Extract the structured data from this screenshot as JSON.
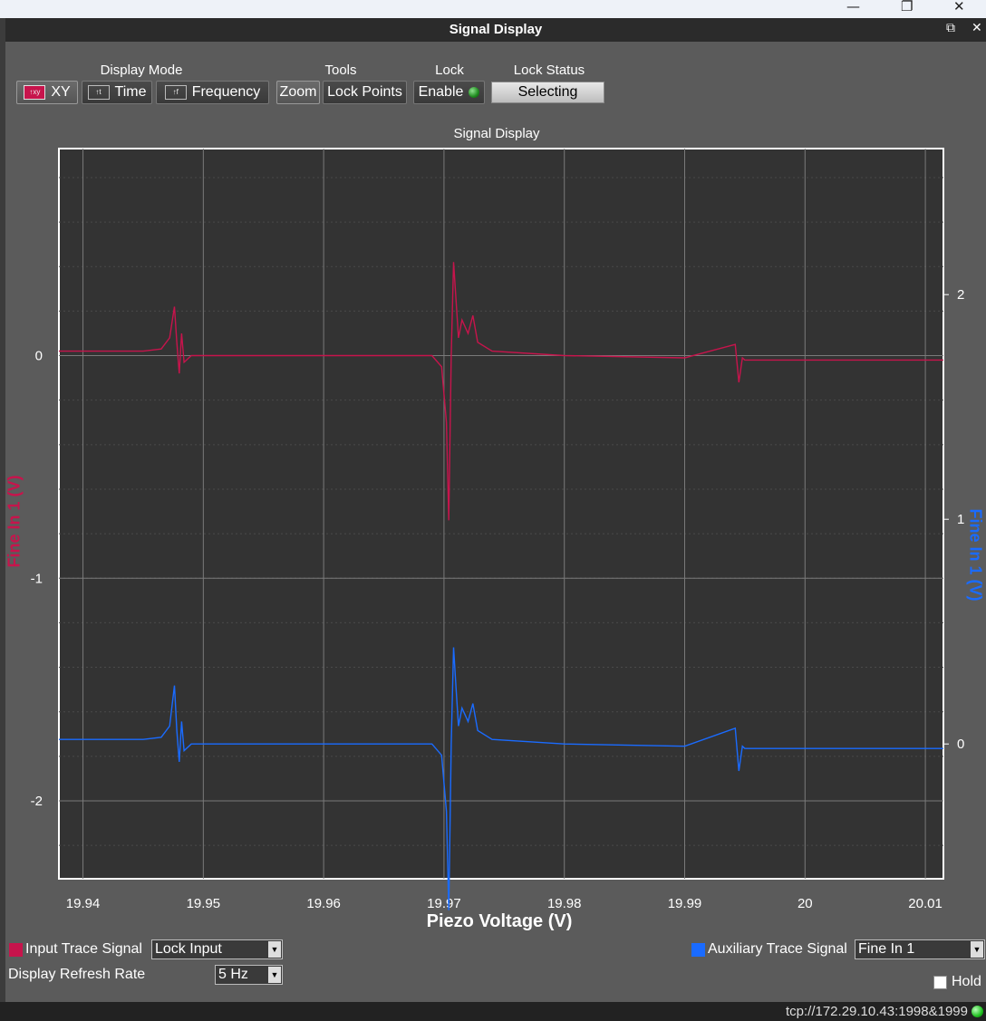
{
  "window": {
    "title": "Signal Display",
    "os_controls": [
      "minimize-icon",
      "restore-icon",
      "close-icon"
    ],
    "panel_controls": [
      "float-icon",
      "close-icon"
    ]
  },
  "toolbar": {
    "display_mode_label": "Display Mode",
    "tools_label": "Tools",
    "lock_label": "Lock",
    "lock_status_label": "Lock Status",
    "xy": "XY",
    "time": "Time",
    "frequency": "Frequency",
    "zoom": "Zoom",
    "lock_points": "Lock Points",
    "enable": "Enable",
    "lock_status_value": "Selecting",
    "selected_mode": "XY"
  },
  "colors": {
    "input_trace": "#c7144c",
    "aux_trace": "#1a6bff",
    "plot_bg": "#333333",
    "grid": "#7a7a7a"
  },
  "chart_data": {
    "type": "line",
    "title": "Signal Display",
    "xlabel": "Piezo Voltage (V)",
    "ylabel_left": "Fine In 1 (V)",
    "ylabel_right": "Fine In 1 (V)",
    "xlim": [
      19.938,
      20.0115
    ],
    "ylim_left": [
      -2.35,
      0.93
    ],
    "ylim_right": [
      -0.6,
      2.65
    ],
    "x_ticks": [
      "19.94",
      "19.95",
      "19.96",
      "19.97",
      "19.98",
      "19.99",
      "20",
      "20.01"
    ],
    "y_left_ticks": [
      "0",
      "-1",
      "-2"
    ],
    "y_right_ticks": [
      "2",
      "1",
      "0"
    ],
    "grid": true,
    "series": [
      {
        "name": "Input Trace Signal",
        "axis": "left",
        "color": "#c7144c",
        "x": [
          19.938,
          19.945,
          19.9465,
          19.9472,
          19.9476,
          19.9478,
          19.948,
          19.9482,
          19.9484,
          19.949,
          19.955,
          19.96,
          19.965,
          19.969,
          19.9698,
          19.9702,
          19.9704,
          19.9706,
          19.9708,
          19.971,
          19.9712,
          19.9715,
          19.972,
          19.9724,
          19.9728,
          19.974,
          19.98,
          19.99,
          19.9942,
          19.9945,
          19.9948,
          19.995,
          19.996,
          20.0,
          20.0115
        ],
        "y": [
          0.02,
          0.02,
          0.03,
          0.08,
          0.22,
          0.06,
          -0.08,
          0.1,
          -0.03,
          0.0,
          0.0,
          0.0,
          0.0,
          0.0,
          -0.05,
          -0.3,
          -0.74,
          0.0,
          0.42,
          0.25,
          0.08,
          0.16,
          0.1,
          0.18,
          0.06,
          0.02,
          0.0,
          -0.01,
          0.05,
          -0.12,
          -0.01,
          -0.02,
          -0.02,
          -0.02,
          -0.02
        ]
      },
      {
        "name": "Auxiliary Trace Signal",
        "axis": "right",
        "color": "#1a6bff",
        "x": [
          19.938,
          19.945,
          19.9465,
          19.9472,
          19.9476,
          19.9478,
          19.948,
          19.9482,
          19.9484,
          19.949,
          19.955,
          19.96,
          19.965,
          19.969,
          19.9698,
          19.9702,
          19.9704,
          19.9706,
          19.9708,
          19.971,
          19.9712,
          19.9715,
          19.972,
          19.9724,
          19.9728,
          19.974,
          19.98,
          19.99,
          19.9942,
          19.9945,
          19.9948,
          19.995,
          19.996,
          20.0,
          20.0115
        ],
        "y": [
          0.02,
          0.02,
          0.03,
          0.08,
          0.26,
          0.06,
          -0.08,
          0.1,
          -0.03,
          0.0,
          0.0,
          0.0,
          0.0,
          0.0,
          -0.05,
          -0.3,
          -0.74,
          0.0,
          0.43,
          0.25,
          0.08,
          0.16,
          0.1,
          0.18,
          0.06,
          0.02,
          0.0,
          -0.01,
          0.07,
          -0.12,
          -0.01,
          -0.02,
          -0.02,
          -0.02,
          -0.02
        ]
      }
    ]
  },
  "bottom": {
    "input_trace_label": "Input Trace Signal",
    "input_trace_value": "Lock Input",
    "refresh_label": "Display Refresh Rate",
    "refresh_value": "5 Hz",
    "aux_trace_label": "Auxiliary Trace Signal",
    "aux_trace_value": "Fine In 1",
    "hold_label": "Hold"
  },
  "status_bar": {
    "connection": "tcp://172.29.10.43:1998&1999"
  }
}
